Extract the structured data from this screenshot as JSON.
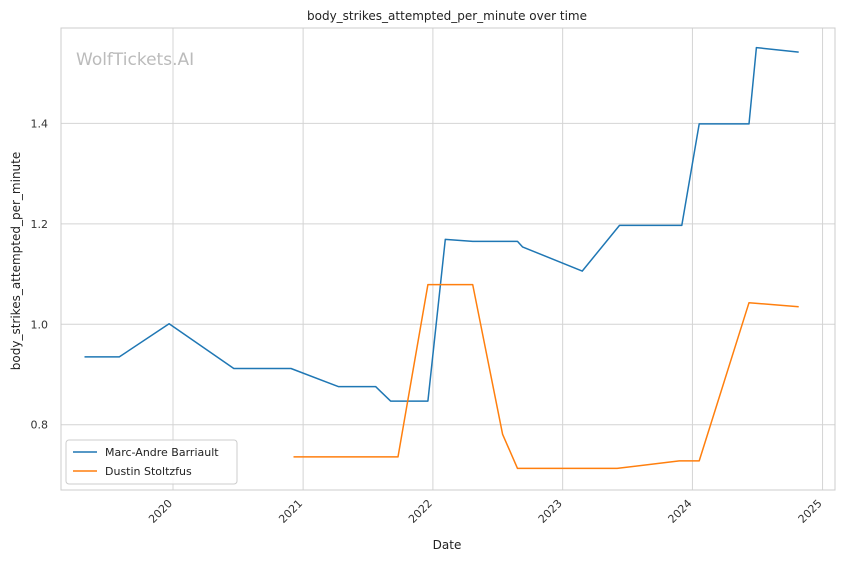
{
  "chart_data": {
    "type": "line",
    "title": "body_strikes_attempted_per_minute over time",
    "xlabel": "Date",
    "ylabel": "body_strikes_attempted_per_minute",
    "watermark": "WolfTickets.AI",
    "x_axis_type": "date",
    "xlim": [
      "2019-02-20",
      "2025-02-05"
    ],
    "ylim": [
      0.67,
      1.59
    ],
    "x_ticks": [
      "2020",
      "2021",
      "2022",
      "2023",
      "2024",
      "2025"
    ],
    "y_ticks": [
      "0.8",
      "1.0",
      "1.2",
      "1.4"
    ],
    "grid": true,
    "legend_position": "lower-left",
    "series": [
      {
        "name": "Marc-Andre Barriault",
        "color": "#1f77b4",
        "points": [
          {
            "x": "2019-04-27",
            "y": 0.935
          },
          {
            "x": "2019-08-03",
            "y": 0.935
          },
          {
            "x": "2019-12-21",
            "y": 1.001
          },
          {
            "x": "2020-06-20",
            "y": 0.912
          },
          {
            "x": "2020-11-28",
            "y": 0.912
          },
          {
            "x": "2021-04-10",
            "y": 0.876
          },
          {
            "x": "2021-07-24",
            "y": 0.876
          },
          {
            "x": "2021-09-04",
            "y": 0.847
          },
          {
            "x": "2021-12-18",
            "y": 0.847
          },
          {
            "x": "2022-02-05",
            "y": 1.169
          },
          {
            "x": "2022-04-23",
            "y": 1.165
          },
          {
            "x": "2022-08-27",
            "y": 1.165
          },
          {
            "x": "2022-09-10",
            "y": 1.154
          },
          {
            "x": "2023-02-25",
            "y": 1.106
          },
          {
            "x": "2023-06-10",
            "y": 1.197
          },
          {
            "x": "2023-12-02",
            "y": 1.197
          },
          {
            "x": "2024-01-20",
            "y": 1.399
          },
          {
            "x": "2024-06-08",
            "y": 1.399
          },
          {
            "x": "2024-06-29",
            "y": 1.551
          },
          {
            "x": "2024-10-26",
            "y": 1.542
          }
        ]
      },
      {
        "name": "Dustin Stoltzfus",
        "color": "#ff7f0e",
        "points": [
          {
            "x": "2020-12-05",
            "y": 0.736
          },
          {
            "x": "2021-09-25",
            "y": 0.736
          },
          {
            "x": "2021-12-18",
            "y": 1.079
          },
          {
            "x": "2022-04-23",
            "y": 1.079
          },
          {
            "x": "2022-07-16",
            "y": 0.781
          },
          {
            "x": "2022-08-27",
            "y": 0.713
          },
          {
            "x": "2023-06-03",
            "y": 0.713
          },
          {
            "x": "2023-11-25",
            "y": 0.728
          },
          {
            "x": "2024-01-20",
            "y": 0.728
          },
          {
            "x": "2024-06-08",
            "y": 1.043
          },
          {
            "x": "2024-10-26",
            "y": 1.035
          }
        ]
      }
    ]
  }
}
